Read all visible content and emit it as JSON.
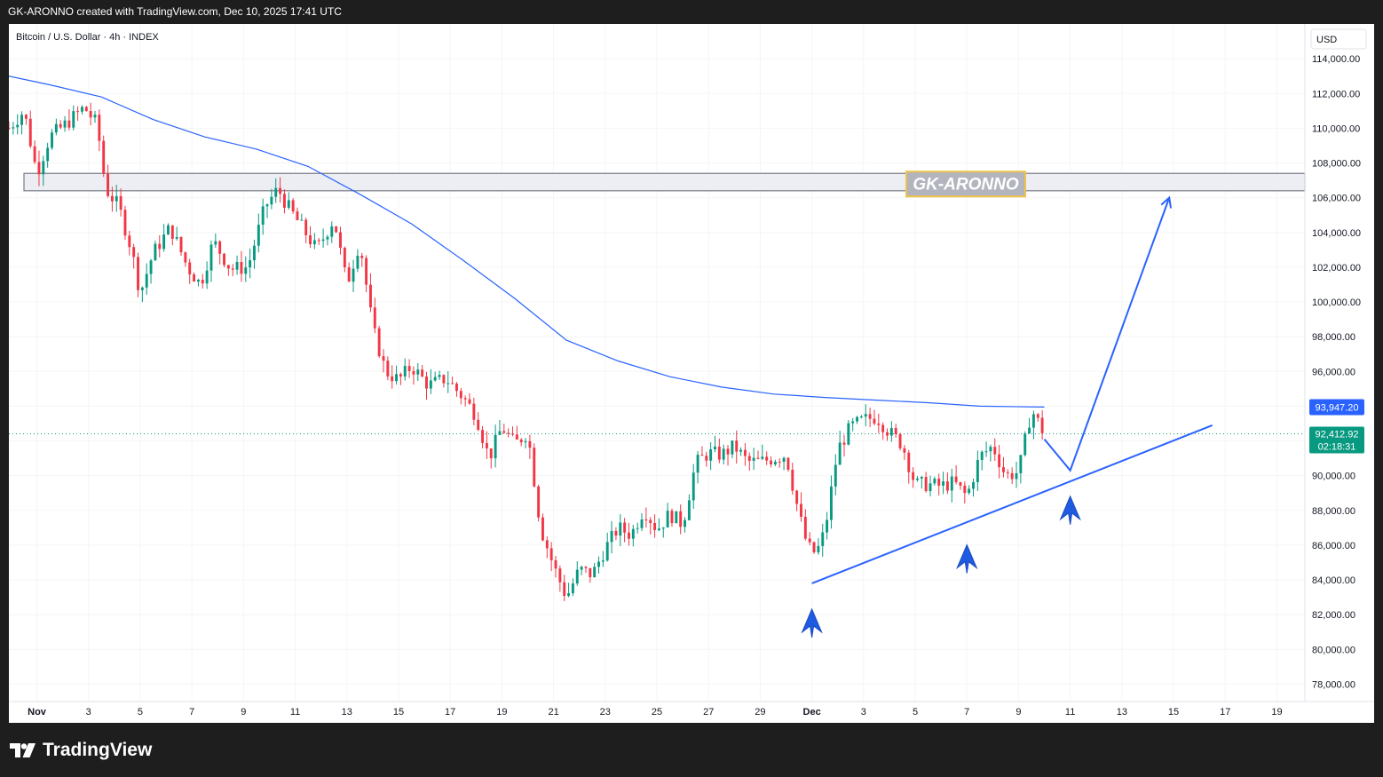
{
  "header": {
    "attribution": "GK-ARONNO created with TradingView.com, Dec 10, 2025 17:41 UTC"
  },
  "chart_data": {
    "type": "candlestick",
    "title": "Bitcoin / U.S. Dollar · 4h · INDEX",
    "currency_button": "USD",
    "watermark": "GK-ARONNO",
    "footer_brand": "TradingView",
    "y_axis": {
      "ticks": [
        "114,000.00",
        "112,000.00",
        "110,000.00",
        "108,000.00",
        "106,000.00",
        "104,000.00",
        "102,000.00",
        "100,000.00",
        "98,000.00",
        "96,000.00",
        "94,000.00",
        "92,000.00",
        "90,000.00",
        "88,000.00",
        "86,000.00",
        "84,000.00",
        "82,000.00",
        "80,000.00",
        "78,000.00"
      ],
      "tick_values": [
        114000,
        112000,
        110000,
        108000,
        106000,
        104000,
        102000,
        100000,
        98000,
        96000,
        94000,
        92000,
        90000,
        88000,
        86000,
        84000,
        82000,
        80000,
        78000
      ],
      "range": [
        77000,
        116000
      ]
    },
    "x_axis": {
      "labels": [
        "Nov",
        "3",
        "5",
        "7",
        "9",
        "11",
        "13",
        "15",
        "17",
        "19",
        "21",
        "23",
        "25",
        "27",
        "29",
        "Dec",
        "3",
        "5",
        "7",
        "9",
        "11",
        "13",
        "15",
        "17",
        "19"
      ],
      "dates": [
        "2025-11-01",
        "2025-11-03",
        "2025-11-05",
        "2025-11-07",
        "2025-11-09",
        "2025-11-11",
        "2025-11-13",
        "2025-11-15",
        "2025-11-17",
        "2025-11-19",
        "2025-11-21",
        "2025-11-23",
        "2025-11-25",
        "2025-11-27",
        "2025-11-29",
        "2025-12-01",
        "2025-12-03",
        "2025-12-05",
        "2025-12-07",
        "2025-12-09",
        "2025-12-11",
        "2025-12-13",
        "2025-12-15",
        "2025-12-17",
        "2025-12-19"
      ],
      "range": [
        "2025-10-31T10:00",
        "2025-12-20T14:00"
      ]
    },
    "colors": {
      "up": "#089981",
      "down": "#f23645",
      "ma": "#2962ff",
      "annotation": "#2962ff",
      "price_label": "#089981",
      "ma_label": "#2962ff",
      "zone_fill": "#eceef4",
      "zone_border": "#787b86",
      "watermark_border": "#f0c24a",
      "watermark_fill": "#b2b5be"
    },
    "price_labels": {
      "ma": "93,947.20",
      "last": "92,412.92",
      "countdown": "02:18:31"
    },
    "last_price": 92412.92,
    "ma_value": 93947.2,
    "resistance_zone": [
      106400,
      107400
    ],
    "ohlc_anchor_points": [
      [
        "2025-10-31T10:00",
        110000
      ],
      [
        "2025-11-01T00:00",
        111000
      ],
      [
        "2025-11-01T12:00",
        107400
      ],
      [
        "2025-11-02T00:00",
        109500
      ],
      [
        "2025-11-02T16:00",
        110300
      ],
      [
        "2025-11-03T08:00",
        111200
      ],
      [
        "2025-11-03T20:00",
        110200
      ],
      [
        "2025-11-04T04:00",
        106500
      ],
      [
        "2025-11-04T16:00",
        105500
      ],
      [
        "2025-11-05T04:00",
        103000
      ],
      [
        "2025-11-05T12:00",
        100500
      ],
      [
        "2025-11-06T00:00",
        102800
      ],
      [
        "2025-11-06T16:00",
        104300
      ],
      [
        "2025-11-07T08:00",
        102000
      ],
      [
        "2025-11-07T20:00",
        101000
      ],
      [
        "2025-11-08T08:00",
        103500
      ],
      [
        "2025-11-09T00:00",
        101900
      ],
      [
        "2025-11-09T16:00",
        102000
      ],
      [
        "2025-11-10T08:00",
        105500
      ],
      [
        "2025-11-10T20:00",
        106500
      ],
      [
        "2025-11-11T04:00",
        105600
      ],
      [
        "2025-11-11T16:00",
        104500
      ],
      [
        "2025-11-12T08:00",
        103000
      ],
      [
        "2025-11-13T00:00",
        104800
      ],
      [
        "2025-11-13T12:00",
        101000
      ],
      [
        "2025-11-14T00:00",
        103500
      ],
      [
        "2025-11-14T12:00",
        98500
      ],
      [
        "2025-11-15T00:00",
        96000
      ],
      [
        "2025-11-15T12:00",
        95500
      ],
      [
        "2025-11-16T00:00",
        96300
      ],
      [
        "2025-11-16T16:00",
        95200
      ],
      [
        "2025-11-17T08:00",
        95600
      ],
      [
        "2025-11-18T00:00",
        94500
      ],
      [
        "2025-11-18T12:00",
        93500
      ],
      [
        "2025-11-19T00:00",
        91000
      ],
      [
        "2025-11-19T12:00",
        92800
      ],
      [
        "2025-11-20T00:00",
        91800
      ],
      [
        "2025-11-20T12:00",
        92500
      ],
      [
        "2025-11-21T00:00",
        87000
      ],
      [
        "2025-11-21T12:00",
        84800
      ],
      [
        "2025-11-22T00:00",
        83000
      ],
      [
        "2025-11-22T12:00",
        84600
      ],
      [
        "2025-11-23T00:00",
        84300
      ],
      [
        "2025-11-23T12:00",
        85800
      ],
      [
        "2025-11-24T00:00",
        87000
      ],
      [
        "2025-11-24T12:00",
        86600
      ],
      [
        "2025-11-25T00:00",
        88100
      ],
      [
        "2025-11-25T12:00",
        86900
      ],
      [
        "2025-11-26T00:00",
        87800
      ],
      [
        "2025-11-26T12:00",
        87200
      ],
      [
        "2025-11-27T00:00",
        90700
      ],
      [
        "2025-11-27T12:00",
        91300
      ],
      [
        "2025-11-28T00:00",
        91200
      ],
      [
        "2025-11-28T12:00",
        91700
      ],
      [
        "2025-11-29T00:00",
        90800
      ],
      [
        "2025-11-29T12:00",
        90800
      ],
      [
        "2025-11-30T00:00",
        91000
      ],
      [
        "2025-11-30T12:00",
        91200
      ],
      [
        "2025-12-01T00:00",
        87800
      ],
      [
        "2025-12-01T08:00",
        85900
      ],
      [
        "2025-12-01T16:00",
        85500
      ],
      [
        "2025-12-02T00:00",
        86800
      ],
      [
        "2025-12-02T12:00",
        91500
      ],
      [
        "2025-12-03T00:00",
        92800
      ],
      [
        "2025-12-03T12:00",
        93200
      ],
      [
        "2025-12-04T00:00",
        93400
      ],
      [
        "2025-12-04T12:00",
        92500
      ],
      [
        "2025-12-05T00:00",
        91800
      ],
      [
        "2025-12-05T12:00",
        89500
      ],
      [
        "2025-12-06T00:00",
        89500
      ],
      [
        "2025-12-06T12:00",
        89400
      ],
      [
        "2025-12-07T00:00",
        89600
      ],
      [
        "2025-12-07T12:00",
        88800
      ],
      [
        "2025-12-08T00:00",
        91100
      ],
      [
        "2025-12-08T12:00",
        91700
      ],
      [
        "2025-12-09T00:00",
        90000
      ],
      [
        "2025-12-09T12:00",
        90200
      ],
      [
        "2025-12-10T00:00",
        93800
      ],
      [
        "2025-12-10T12:00",
        92400
      ]
    ],
    "ma_points": [
      [
        "2025-10-31T10:00",
        113000
      ],
      [
        "2025-11-02T00:00",
        112500
      ],
      [
        "2025-11-04T00:00",
        111800
      ],
      [
        "2025-11-06T00:00",
        110500
      ],
      [
        "2025-11-08T00:00",
        109500
      ],
      [
        "2025-11-10T00:00",
        108800
      ],
      [
        "2025-11-12T00:00",
        107800
      ],
      [
        "2025-11-14T00:00",
        106200
      ],
      [
        "2025-11-16T00:00",
        104500
      ],
      [
        "2025-11-18T00:00",
        102400
      ],
      [
        "2025-11-20T00:00",
        100200
      ],
      [
        "2025-11-22T00:00",
        97800
      ],
      [
        "2025-11-24T00:00",
        96600
      ],
      [
        "2025-11-26T00:00",
        95700
      ],
      [
        "2025-11-28T00:00",
        95100
      ],
      [
        "2025-11-30T00:00",
        94700
      ],
      [
        "2025-12-02T00:00",
        94500
      ],
      [
        "2025-12-04T00:00",
        94350
      ],
      [
        "2025-12-06T00:00",
        94200
      ],
      [
        "2025-12-08T00:00",
        94000
      ],
      [
        "2025-12-10T12:00",
        93947
      ]
    ],
    "annotations": {
      "trendline": [
        [
          "2025-12-01T12:00",
          83800
        ],
        [
          "2025-12-17T00:00",
          92900
        ]
      ],
      "projection": [
        [
          "2025-12-10T12:00",
          92100
        ],
        [
          "2025-12-11T12:00",
          90300
        ],
        [
          "2025-12-15T08:00",
          106000
        ]
      ],
      "arrows": [
        [
          "2025-12-01T12:00",
          81500
        ],
        [
          "2025-12-07T12:00",
          85200
        ],
        [
          "2025-12-11T12:00",
          88000
        ]
      ]
    }
  }
}
